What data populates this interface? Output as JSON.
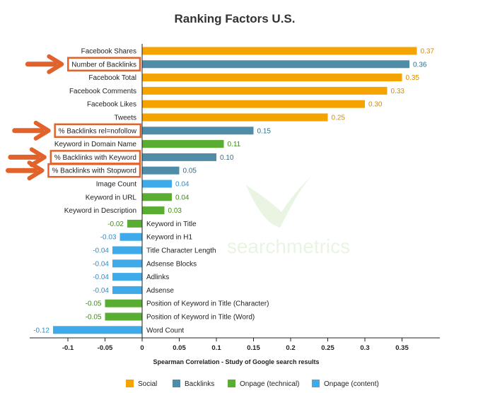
{
  "chart_data": {
    "type": "bar",
    "orientation": "horizontal",
    "title": "Ranking Factors U.S.",
    "xlabel": "Spearman Correlation - Study of Google search results",
    "ylabel": "",
    "xlim": [
      -0.15,
      0.4
    ],
    "x_ticks": [
      "-0.1",
      "-0.05",
      "0",
      "0.05",
      "0.1",
      "0.15",
      "0.2",
      "0.25",
      "0.3",
      "0.35"
    ],
    "x_tick_values": [
      -0.1,
      -0.05,
      0,
      0.05,
      0.1,
      0.15,
      0.2,
      0.25,
      0.3,
      0.35
    ],
    "grid": false,
    "legend_position": "bottom",
    "watermark": "searchmetrics",
    "series": [
      {
        "name": "Social",
        "color": "#f5a300"
      },
      {
        "name": "Backlinks",
        "color": "#4f8ca8"
      },
      {
        "name": "Onpage (technical)",
        "color": "#5aad33"
      },
      {
        "name": "Onpage (content)",
        "color": "#3eaaea"
      }
    ],
    "value_label_colors": {
      "Social": "#d98a00",
      "Backlinks": "#2c6f8d",
      "Onpage (technical)": "#3f8a1c",
      "Onpage (content)": "#2a8fd0"
    },
    "highlight_color": "#e2622b",
    "bars": [
      {
        "label": "Facebook Shares",
        "value": 0.37,
        "value_text": "0.37",
        "series": "Social",
        "highlight": false
      },
      {
        "label": "Number of Backlinks",
        "value": 0.36,
        "value_text": "0.36",
        "series": "Backlinks",
        "highlight": true
      },
      {
        "label": "Facebook Total",
        "value": 0.35,
        "value_text": "0.35",
        "series": "Social",
        "highlight": false
      },
      {
        "label": "Facebook Comments",
        "value": 0.33,
        "value_text": "0.33",
        "series": "Social",
        "highlight": false
      },
      {
        "label": "Facebook Likes",
        "value": 0.3,
        "value_text": "0.30",
        "series": "Social",
        "highlight": false
      },
      {
        "label": "Tweets",
        "value": 0.25,
        "value_text": "0.25",
        "series": "Social",
        "highlight": false
      },
      {
        "label": "% Backlinks rel=nofollow",
        "value": 0.15,
        "value_text": "0.15",
        "series": "Backlinks",
        "highlight": true
      },
      {
        "label": "Keyword in Domain Name",
        "value": 0.11,
        "value_text": "0.11",
        "series": "Onpage (technical)",
        "highlight": false
      },
      {
        "label": "% Backlinks with Keyword",
        "value": 0.1,
        "value_text": "0.10",
        "series": "Backlinks",
        "highlight": true
      },
      {
        "label": "% Backlinks with Stopword",
        "value": 0.05,
        "value_text": "0.05",
        "series": "Backlinks",
        "highlight": true
      },
      {
        "label": "Image Count",
        "value": 0.04,
        "value_text": "0.04",
        "series": "Onpage (content)",
        "highlight": false
      },
      {
        "label": "Keyword in URL",
        "value": 0.04,
        "value_text": "0.04",
        "series": "Onpage (technical)",
        "highlight": false
      },
      {
        "label": "Keyword in Description",
        "value": 0.03,
        "value_text": "0.03",
        "series": "Onpage (technical)",
        "highlight": false
      },
      {
        "label": "Keyword in Title",
        "value": -0.02,
        "value_text": "-0.02",
        "series": "Onpage (technical)",
        "highlight": false
      },
      {
        "label": "Keyword in H1",
        "value": -0.03,
        "value_text": "-0.03",
        "series": "Onpage (content)",
        "highlight": false
      },
      {
        "label": "Title Character Length",
        "value": -0.04,
        "value_text": "-0.04",
        "series": "Onpage (content)",
        "highlight": false
      },
      {
        "label": "Adsense Blocks",
        "value": -0.04,
        "value_text": "-0.04",
        "series": "Onpage (content)",
        "highlight": false
      },
      {
        "label": "Adlinks",
        "value": -0.04,
        "value_text": "-0.04",
        "series": "Onpage (content)",
        "highlight": false
      },
      {
        "label": "Adsense",
        "value": -0.04,
        "value_text": "-0.04",
        "series": "Onpage (content)",
        "highlight": false
      },
      {
        "label": "Position of Keyword in Title (Character)",
        "value": -0.05,
        "value_text": "-0.05",
        "series": "Onpage (technical)",
        "highlight": false
      },
      {
        "label": "Position of Keyword in Title (Word)",
        "value": -0.05,
        "value_text": "-0.05",
        "series": "Onpage (technical)",
        "highlight": false
      },
      {
        "label": "Word Count",
        "value": -0.12,
        "value_text": "-0.12",
        "series": "Onpage (content)",
        "highlight": false
      }
    ]
  }
}
